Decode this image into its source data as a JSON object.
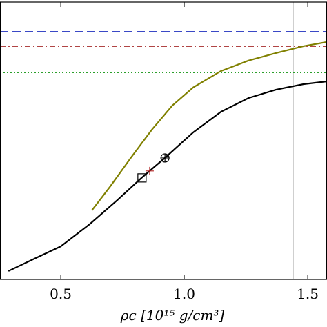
{
  "chart_data": {
    "type": "line",
    "xlabel": "ρc [10¹⁵ g/cm³]",
    "xlim": [
      0.254,
      1.578
    ],
    "ylim": [
      0,
      1
    ],
    "xticks": [
      0.5,
      {
        "value": 1.0,
        "label": "1.0"
      },
      1.5
    ],
    "series": [
      {
        "color": "#000000",
        "x": [
          0.288,
          0.394,
          0.5,
          0.617,
          0.729,
          0.827,
          0.924,
          1.036,
          1.148,
          1.26,
          1.371,
          1.483,
          1.578
        ],
        "values": [
          0.03,
          0.075,
          0.119,
          0.199,
          0.286,
          0.366,
          0.44,
          0.53,
          0.604,
          0.654,
          0.684,
          0.704,
          0.714
        ]
      },
      {
        "color": "#808000",
        "x": [
          0.626,
          0.701,
          0.785,
          0.869,
          0.952,
          1.036,
          1.148,
          1.26,
          1.371,
          1.483,
          1.578
        ],
        "values": [
          0.249,
          0.336,
          0.44,
          0.54,
          0.627,
          0.692,
          0.751,
          0.789,
          0.816,
          0.841,
          0.856
        ]
      }
    ],
    "hlines": [
      {
        "value": 0.893,
        "color": "#1f2fbf",
        "style": "dashed"
      },
      {
        "value": 0.841,
        "color": "#a52a2a",
        "style": "dashdot"
      },
      {
        "value": 0.746,
        "color": "#2ca02c",
        "style": "dotted"
      }
    ],
    "vlines": [
      {
        "value": 1.441,
        "color": "#bbbbbb"
      }
    ],
    "markers": [
      {
        "shape": "square",
        "x": 0.829,
        "y": 0.366,
        "color": "#000000"
      },
      {
        "shape": "plus",
        "x": 0.86,
        "y": 0.391,
        "color": "#b22222"
      },
      {
        "shape": "circle-plus",
        "x": 0.922,
        "y": 0.438,
        "color": "#000000"
      }
    ]
  }
}
